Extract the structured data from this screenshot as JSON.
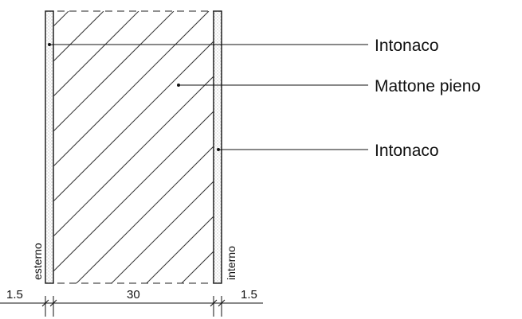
{
  "diagram": {
    "labels": {
      "plaster_top": "Intonaco",
      "brick": "Mattone pieno",
      "plaster_bottom": "Intonaco"
    },
    "sides": {
      "outside": "esterno",
      "inside": "interno"
    },
    "dimensions": {
      "left_plaster": "1.5",
      "brick": "30",
      "right_plaster": "1.5"
    }
  }
}
